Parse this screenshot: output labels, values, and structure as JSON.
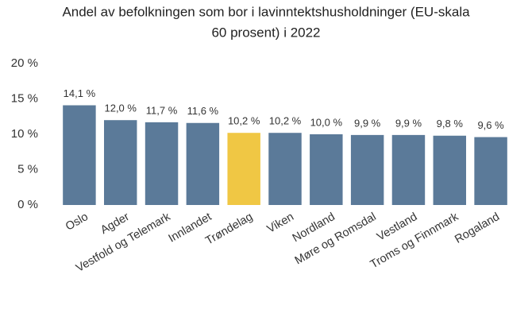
{
  "chart_data": {
    "type": "bar",
    "title": [
      "Andel av befolkningen som bor i lavinntektshusholdninger (EU-skala",
      "60 prosent) i 2022"
    ],
    "categories": [
      "Oslo",
      "Agder",
      "Vestfold og Telemark",
      "Innlandet",
      "Trøndelag",
      "Viken",
      "Nordland",
      "Møre og Romsdal",
      "Vestland",
      "Troms og Finnmark",
      "Rogaland"
    ],
    "values": [
      14.1,
      12.0,
      11.7,
      11.6,
      10.2,
      10.2,
      10.0,
      9.9,
      9.9,
      9.8,
      9.6
    ],
    "value_labels": [
      "14,1 %",
      "12,0 %",
      "11,7 %",
      "11,6 %",
      "10,2 %",
      "10,2 %",
      "10,0 %",
      "9,9 %",
      "9,9 %",
      "9,8 %",
      "9,6 %"
    ],
    "colors": [
      "#5b7a99",
      "#5b7a99",
      "#5b7a99",
      "#5b7a99",
      "#f0c744",
      "#5b7a99",
      "#5b7a99",
      "#5b7a99",
      "#5b7a99",
      "#5b7a99",
      "#5b7a99"
    ],
    "ylim": [
      0,
      20
    ],
    "yticks": [
      {
        "value": 0,
        "label": "0 %"
      },
      {
        "value": 5,
        "label": "5 %"
      },
      {
        "value": 10,
        "label": "10 %"
      },
      {
        "value": 15,
        "label": "15 %"
      },
      {
        "value": 20,
        "label": "20 %"
      }
    ],
    "grid": false
  }
}
